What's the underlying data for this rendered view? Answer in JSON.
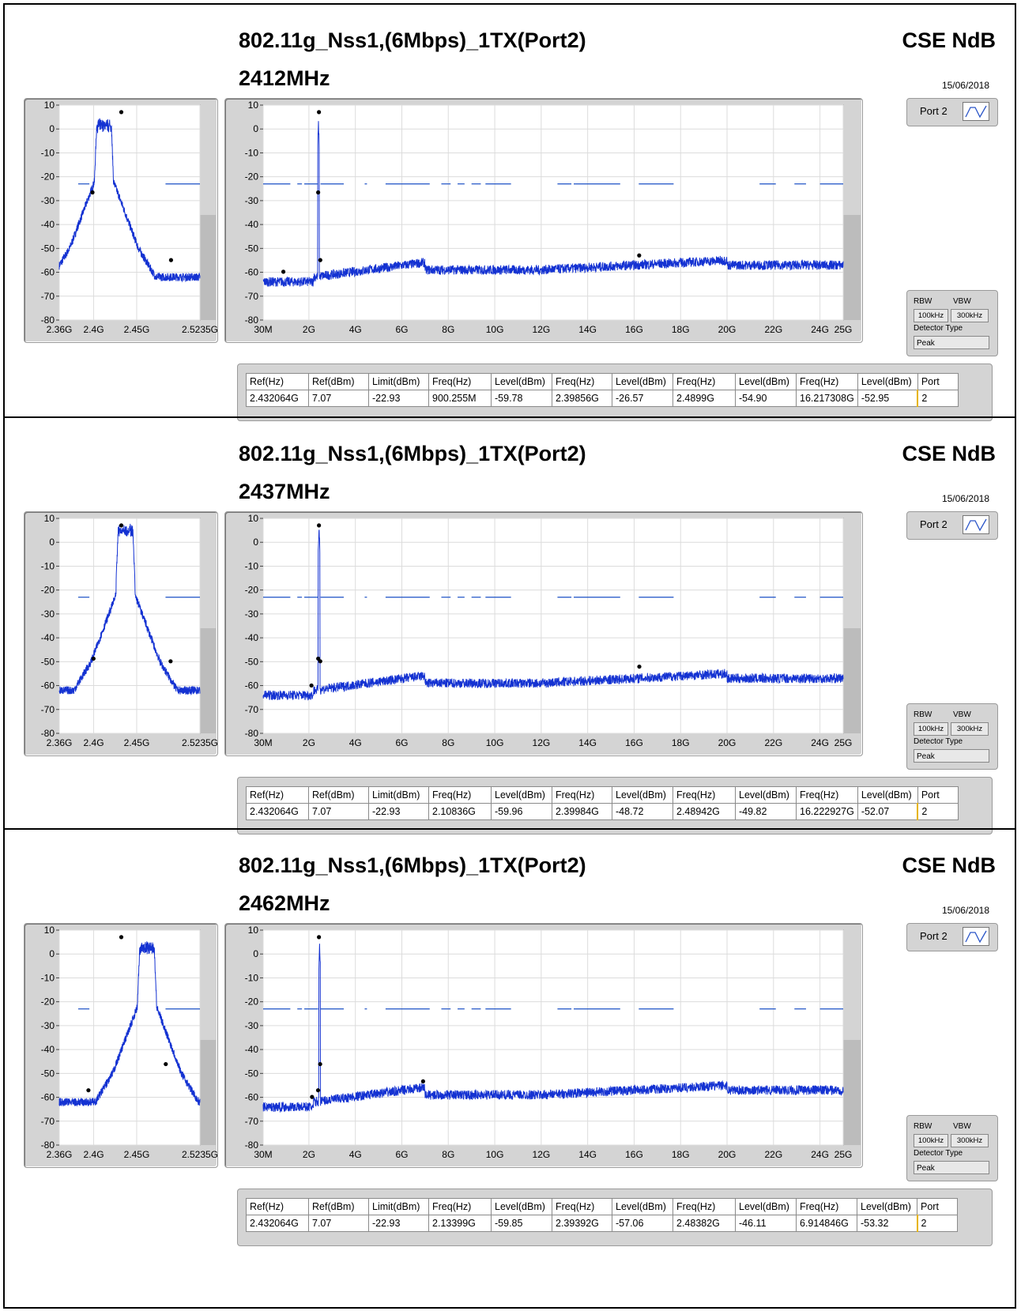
{
  "brand": "CSE NdB",
  "date": "15/06/2018",
  "port_selector": {
    "label": "Port 2",
    "icon": "trace-icon"
  },
  "settings": {
    "rbw_label": "RBW",
    "vbw_label": "VBW",
    "rbw": "100kHz",
    "vbw": "300kHz",
    "detector_label": "Detector Type",
    "detector": "Peak"
  },
  "table_headers": [
    "Ref(Hz)",
    "Ref(dBm)",
    "Limit(dBm)",
    "Freq(Hz)",
    "Level(dBm)",
    "Freq(Hz)",
    "Level(dBm)",
    "Freq(Hz)",
    "Level(dBm)",
    "Freq(Hz)",
    "Level(dBm)",
    "Port"
  ],
  "colors": {
    "trace": "#1432d2",
    "limit": "#1a4fc4",
    "marker": "#000000",
    "panel": "#d4d4d4"
  },
  "sections": [
    {
      "title": "802.11g_Nss1,(6Mbps)_1TX(Port2)",
      "frequency": "2412MHz",
      "table_row": [
        "2.432064G",
        "7.07",
        "-22.93",
        "900.255M",
        "-59.78",
        "2.39856G",
        "-26.57",
        "2.4899G",
        "-54.90",
        "16.217308G",
        "-52.95",
        "2"
      ]
    },
    {
      "title": "802.11g_Nss1,(6Mbps)_1TX(Port2)",
      "frequency": "2437MHz",
      "table_row": [
        "2.432064G",
        "7.07",
        "-22.93",
        "2.10836G",
        "-59.96",
        "2.39984G",
        "-48.72",
        "2.48942G",
        "-49.82",
        "16.222927G",
        "-52.07",
        "2"
      ]
    },
    {
      "title": "802.11g_Nss1,(6Mbps)_1TX(Port2)",
      "frequency": "2462MHz",
      "table_row": [
        "2.432064G",
        "7.07",
        "-22.93",
        "2.13399G",
        "-59.85",
        "2.39392G",
        "-57.06",
        "2.48382G",
        "-46.11",
        "6.914846G",
        "-53.32",
        "2"
      ]
    }
  ],
  "chart_data": [
    {
      "type": "line",
      "section": 0,
      "view": "zoom",
      "xlim": [
        2.36,
        2.5235
      ],
      "ylim": [
        -80,
        10
      ],
      "xticks": [
        "2.36G",
        "2.4G",
        "2.45G",
        "2.5235G"
      ],
      "xtick_values": [
        2.36,
        2.4,
        2.45,
        2.5235
      ],
      "yticks": [
        10,
        0,
        -10,
        -20,
        -30,
        -40,
        -50,
        -60,
        -70,
        -80
      ],
      "trace": {
        "center": 2.412,
        "floor": -62,
        "top": 1.5
      },
      "limit_segments": [
        [
          2.382,
          2.395
        ],
        [
          2.4835,
          2.5235
        ]
      ],
      "limit_level": -23,
      "markers": [
        {
          "x": 2.3986,
          "y": -26.57
        },
        {
          "x": 2.4321,
          "y": 7.07
        },
        {
          "x": 2.4899,
          "y": -54.9
        }
      ]
    },
    {
      "type": "line",
      "section": 0,
      "view": "wide",
      "xlim": [
        0.03,
        25
      ],
      "ylim": [
        -80,
        10
      ],
      "xticks": [
        "30M",
        "2G",
        "4G",
        "6G",
        "8G",
        "10G",
        "12G",
        "14G",
        "16G",
        "18G",
        "20G",
        "22G",
        "24G",
        "25G"
      ],
      "xtick_values": [
        0.03,
        2,
        4,
        6,
        8,
        10,
        12,
        14,
        16,
        18,
        20,
        22,
        24,
        25
      ],
      "yticks": [
        10,
        0,
        -10,
        -20,
        -30,
        -40,
        -50,
        -60,
        -70,
        -80
      ],
      "trace": {
        "carrier": 2.412,
        "peak": 2
      },
      "limit_segments": [
        [
          0.03,
          1.2
        ],
        [
          1.5,
          1.7
        ],
        [
          1.8,
          2.4
        ],
        [
          2.5,
          3.5
        ],
        [
          4.4,
          4.5
        ],
        [
          5.3,
          7.2
        ],
        [
          7.7,
          8.1
        ],
        [
          8.4,
          8.7
        ],
        [
          9.0,
          9.4
        ],
        [
          9.6,
          10.7
        ],
        [
          12.7,
          13.3
        ],
        [
          13.4,
          15.4
        ],
        [
          16.2,
          17.7
        ],
        [
          21.4,
          22.1
        ],
        [
          22.9,
          23.4
        ],
        [
          24.0,
          25.0
        ]
      ],
      "limit_level": -23,
      "markers": [
        {
          "x": 0.9003,
          "y": -59.78
        },
        {
          "x": 2.4321,
          "y": 7.07
        },
        {
          "x": 2.3986,
          "y": -26.57
        },
        {
          "x": 2.4899,
          "y": -54.9
        },
        {
          "x": 16.2173,
          "y": -52.95
        }
      ]
    },
    {
      "type": "line",
      "section": 1,
      "view": "zoom",
      "xlim": [
        2.36,
        2.5235
      ],
      "ylim": [
        -80,
        10
      ],
      "xticks": [
        "2.36G",
        "2.4G",
        "2.45G",
        "2.5235G"
      ],
      "xtick_values": [
        2.36,
        2.4,
        2.45,
        2.5235
      ],
      "yticks": [
        10,
        0,
        -10,
        -20,
        -30,
        -40,
        -50,
        -60,
        -70,
        -80
      ],
      "trace": {
        "center": 2.437,
        "floor": -62,
        "top": 5
      },
      "limit_segments": [
        [
          2.382,
          2.395
        ],
        [
          2.4835,
          2.5235
        ]
      ],
      "limit_level": -23,
      "markers": [
        {
          "x": 2.3998,
          "y": -48.72
        },
        {
          "x": 2.4321,
          "y": 7.07
        },
        {
          "x": 2.4894,
          "y": -49.82
        }
      ]
    },
    {
      "type": "line",
      "section": 1,
      "view": "wide",
      "xlim": [
        0.03,
        25
      ],
      "ylim": [
        -80,
        10
      ],
      "xticks": [
        "30M",
        "2G",
        "4G",
        "6G",
        "8G",
        "10G",
        "12G",
        "14G",
        "16G",
        "18G",
        "20G",
        "22G",
        "24G",
        "25G"
      ],
      "xtick_values": [
        0.03,
        2,
        4,
        6,
        8,
        10,
        12,
        14,
        16,
        18,
        20,
        22,
        24,
        25
      ],
      "yticks": [
        10,
        0,
        -10,
        -20,
        -30,
        -40,
        -50,
        -60,
        -70,
        -80
      ],
      "trace": {
        "carrier": 2.437,
        "peak": 7
      },
      "limit_segments": [
        [
          0.03,
          1.2
        ],
        [
          1.5,
          1.7
        ],
        [
          1.8,
          2.4
        ],
        [
          2.5,
          3.5
        ],
        [
          4.4,
          4.5
        ],
        [
          5.3,
          7.2
        ],
        [
          7.7,
          8.1
        ],
        [
          8.4,
          8.7
        ],
        [
          9.0,
          9.4
        ],
        [
          9.6,
          10.7
        ],
        [
          12.7,
          13.3
        ],
        [
          13.4,
          15.4
        ],
        [
          16.2,
          17.7
        ],
        [
          21.4,
          22.1
        ],
        [
          22.9,
          23.4
        ],
        [
          24.0,
          25.0
        ]
      ],
      "limit_level": -23,
      "markers": [
        {
          "x": 2.1084,
          "y": -59.96
        },
        {
          "x": 2.4321,
          "y": 7.07
        },
        {
          "x": 2.3998,
          "y": -48.72
        },
        {
          "x": 2.4894,
          "y": -49.82
        },
        {
          "x": 16.2229,
          "y": -52.07
        }
      ]
    },
    {
      "type": "line",
      "section": 2,
      "view": "zoom",
      "xlim": [
        2.36,
        2.5235
      ],
      "ylim": [
        -80,
        10
      ],
      "xticks": [
        "2.36G",
        "2.4G",
        "2.45G",
        "2.5235G"
      ],
      "xtick_values": [
        2.36,
        2.4,
        2.45,
        2.5235
      ],
      "yticks": [
        10,
        0,
        -10,
        -20,
        -30,
        -40,
        -50,
        -60,
        -70,
        -80
      ],
      "trace": {
        "center": 2.462,
        "floor": -62,
        "top": 2.5
      },
      "limit_segments": [
        [
          2.382,
          2.395
        ],
        [
          2.4835,
          2.5235
        ]
      ],
      "limit_level": -23,
      "markers": [
        {
          "x": 2.3939,
          "y": -57.06
        },
        {
          "x": 2.4321,
          "y": 7.07
        },
        {
          "x": 2.4838,
          "y": -46.11
        }
      ]
    },
    {
      "type": "line",
      "section": 2,
      "view": "wide",
      "xlim": [
        0.03,
        25
      ],
      "ylim": [
        -80,
        10
      ],
      "xticks": [
        "30M",
        "2G",
        "4G",
        "6G",
        "8G",
        "10G",
        "12G",
        "14G",
        "16G",
        "18G",
        "20G",
        "22G",
        "24G",
        "25G"
      ],
      "xtick_values": [
        0.03,
        2,
        4,
        6,
        8,
        10,
        12,
        14,
        16,
        18,
        20,
        22,
        24,
        25
      ],
      "yticks": [
        10,
        0,
        -10,
        -20,
        -30,
        -40,
        -50,
        -60,
        -70,
        -80
      ],
      "trace": {
        "carrier": 2.462,
        "peak": 4
      },
      "limit_segments": [
        [
          0.03,
          1.2
        ],
        [
          1.5,
          1.7
        ],
        [
          1.8,
          2.4
        ],
        [
          2.5,
          3.5
        ],
        [
          4.4,
          4.5
        ],
        [
          5.3,
          7.2
        ],
        [
          7.7,
          8.1
        ],
        [
          8.4,
          8.7
        ],
        [
          9.0,
          9.4
        ],
        [
          9.6,
          10.7
        ],
        [
          12.7,
          13.3
        ],
        [
          13.4,
          15.4
        ],
        [
          16.2,
          17.7
        ],
        [
          21.4,
          22.1
        ],
        [
          22.9,
          23.4
        ],
        [
          24.0,
          25.0
        ]
      ],
      "limit_level": -23,
      "markers": [
        {
          "x": 2.134,
          "y": -59.85
        },
        {
          "x": 2.4321,
          "y": 7.07
        },
        {
          "x": 2.4838,
          "y": -46.11
        },
        {
          "x": 2.3939,
          "y": -57.06
        },
        {
          "x": 6.9148,
          "y": -53.32
        }
      ]
    }
  ]
}
